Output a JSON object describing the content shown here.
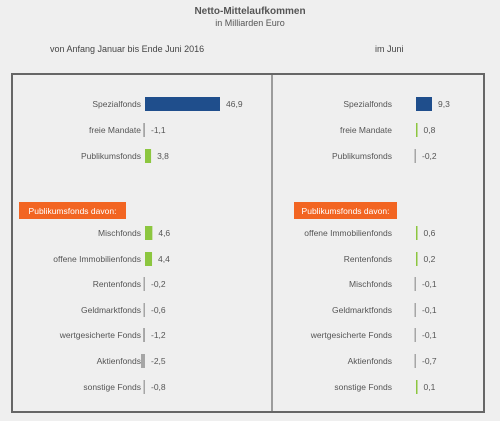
{
  "title": "Netto-Mittelaufkommen",
  "subtitle": "in Milliarden  Euro",
  "periods": {
    "left": "von  Anfang Januar  bis Ende Juni 2016",
    "right": "im Juni"
  },
  "colors": {
    "spezialfonds": "#1f4e8c",
    "publikumsfonds": "#8cc63f",
    "negative": "#a6a6a6",
    "header": "#f26522",
    "background": "#efefef",
    "frame": "#666666"
  },
  "chart_data": [
    {
      "type": "bar",
      "orientation": "horizontal",
      "period": "von  Anfang Januar  bis Ende Juni 2016",
      "top_group": {
        "categories": [
          "Spezialfonds",
          "freie Mandate",
          "Publikumsfonds"
        ],
        "values": [
          46.9,
          -1.1,
          3.8
        ],
        "labels": [
          "46,9",
          "-1,1",
          "3,8"
        ]
      },
      "sub_header": "Publikumsfonds davon:",
      "sub_group": {
        "categories": [
          "Mischfonds",
          "offene Immobilienfonds",
          "Rentenfonds",
          "Geldmarktfonds",
          "wertgesicherte Fonds",
          "Aktienfonds",
          "sonstige Fonds"
        ],
        "values": [
          4.6,
          4.4,
          -0.2,
          -0.6,
          -1.2,
          -2.5,
          -0.8
        ],
        "labels": [
          "4,6",
          "4,4",
          "-0,2",
          "-0,6",
          "-1,2",
          "-2,5",
          "-0,8"
        ]
      }
    },
    {
      "type": "bar",
      "orientation": "horizontal",
      "period": "im Juni",
      "top_group": {
        "categories": [
          "Spezialfonds",
          "freie Mandate",
          "Publikumsfonds"
        ],
        "values": [
          9.3,
          0.8,
          -0.2
        ],
        "labels": [
          "9,3",
          "0,8",
          "-0,2"
        ]
      },
      "sub_header": "Publikumsfonds davon:",
      "sub_group": {
        "categories": [
          "offene Immobilienfonds",
          "Rentenfonds",
          "Mischfonds",
          "Geldmarktfonds",
          "wertgesicherte Fonds",
          "Aktienfonds",
          "sonstige Fonds"
        ],
        "values": [
          0.6,
          0.2,
          -0.1,
          -0.1,
          -0.1,
          -0.7,
          0.1
        ],
        "labels": [
          "0,6",
          "0,2",
          "-0,1",
          "-0,1",
          "-0,1",
          "-0,7",
          "0,1"
        ]
      }
    }
  ]
}
